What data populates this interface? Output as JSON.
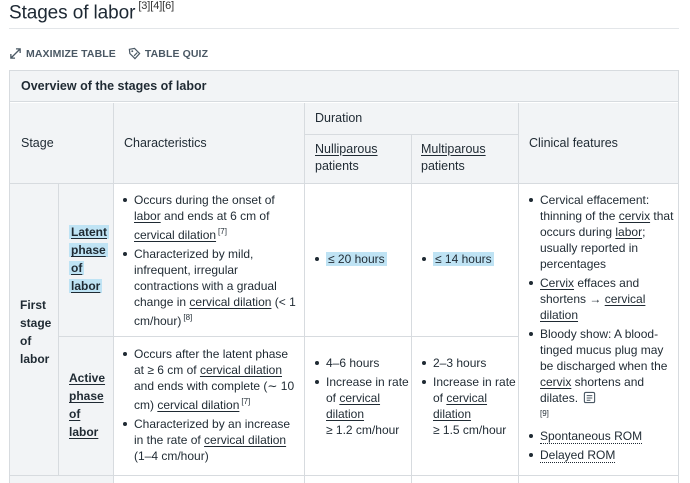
{
  "heading": {
    "title": "Stages of labor",
    "refs": "[3][4][6]"
  },
  "actions": {
    "maximize": "MAXIMIZE TABLE",
    "quiz": "TABLE QUIZ"
  },
  "table": {
    "caption": "Overview of the stages of labor",
    "headers": {
      "stage": "Stage",
      "characteristics": "Characteristics",
      "duration": "Duration",
      "nulliparous": "Nulliparous",
      "nulliparous2": "patients",
      "multiparous": "Multiparous",
      "multiparous2": "patients",
      "clinical": "Clinical features"
    },
    "stage_label": [
      "First",
      "stage",
      "of",
      "labor"
    ],
    "latent": {
      "label": [
        "Latent",
        "phase",
        "of",
        "labor"
      ],
      "char1": {
        "a": "Occurs during the onset of",
        "b": "labor",
        "c": " and ends at 6 cm of",
        "d": "cervical dilation",
        "ref": "[7]"
      },
      "char2": {
        "a": "Characterized by mild, infrequent, irregular contractions with a gradual change in ",
        "b": "cervical dilation",
        "c": " (< 1 cm/hour)",
        "ref": "[8]"
      },
      "nulli": "≤ 20 hours",
      "multi": "≤ 14 hours"
    },
    "active": {
      "label": [
        "Active",
        "phase",
        "of",
        "labor"
      ],
      "char1": {
        "a": "Occurs after the latent phase at ≥ 6 cm of ",
        "b": "cervical dilation",
        "c": " and ends with complete (∼ 10 cm) ",
        "d": "cervical dilation",
        "ref": "[7]"
      },
      "char2": {
        "a": "Characterized by an increase in the rate of ",
        "b": "cervical dilation",
        "c": " (1–4 cm/hour)"
      },
      "nulli1": "4–6 hours",
      "nulli2a": "Increase in rate of ",
      "nulli2b": "cervical dilation",
      "nulli2c": "≥ 1.2 cm/hour",
      "multi1": "2–3 hours",
      "multi2a": "Increase in rate of ",
      "multi2b": "cervical dilation",
      "multi2c": "≥ 1.5 cm/hour"
    },
    "clinical": {
      "f1a": "Cervical effacement: thinning of the ",
      "f1b": "cervix",
      "f1c": " that occurs during ",
      "f1d": "labor",
      "f1e": "; usually reported in percentages",
      "f2a": "Cervix",
      "f2b": " effaces and shortens → ",
      "f2c": "cervical dilation",
      "f3a": "Bloody show: A blood-tinged mucus plug may be discharged when the ",
      "f3b": "cervix",
      "f3c": " shortens and dilates.",
      "f3ref": "[9]",
      "f4": "Spontaneous ROM",
      "f5": "Delayed ROM"
    }
  }
}
